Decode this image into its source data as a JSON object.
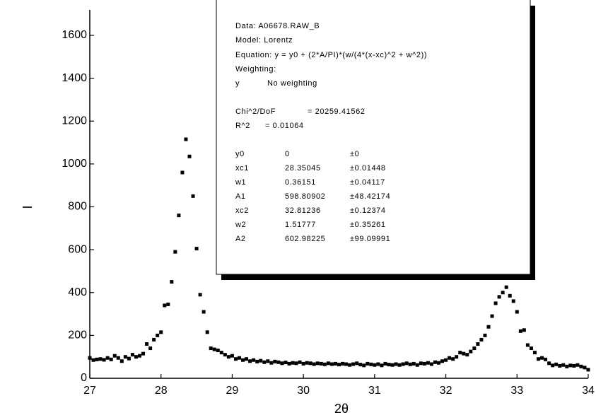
{
  "chart_data": {
    "type": "scatter",
    "xlabel": "2θ",
    "ylabel": "I",
    "xlim": [
      27,
      34
    ],
    "ylim": [
      0,
      1600
    ],
    "xticks": [
      27,
      28,
      29,
      30,
      31,
      32,
      33,
      34
    ],
    "yticks": [
      0,
      200,
      400,
      600,
      800,
      1000,
      1200,
      1400,
      1600
    ],
    "color": "#000000",
    "x": [
      27.0,
      27.05,
      27.1,
      27.15,
      27.2,
      27.25,
      27.3,
      27.35,
      27.4,
      27.45,
      27.5,
      27.55,
      27.6,
      27.65,
      27.7,
      27.75,
      27.8,
      27.85,
      27.9,
      27.95,
      28.0,
      28.05,
      28.1,
      28.15,
      28.2,
      28.25,
      28.3,
      28.35,
      28.4,
      28.45,
      28.5,
      28.55,
      28.6,
      28.65,
      28.7,
      28.75,
      28.8,
      28.85,
      28.9,
      28.95,
      29.0,
      29.05,
      29.1,
      29.15,
      29.2,
      29.25,
      29.3,
      29.35,
      29.4,
      29.45,
      29.5,
      29.55,
      29.6,
      29.65,
      29.7,
      29.75,
      29.8,
      29.85,
      29.9,
      29.95,
      30.0,
      30.05,
      30.1,
      30.15,
      30.2,
      30.25,
      30.3,
      30.35,
      30.4,
      30.45,
      30.5,
      30.55,
      30.6,
      30.65,
      30.7,
      30.75,
      30.8,
      30.85,
      30.9,
      30.95,
      31.0,
      31.05,
      31.1,
      31.15,
      31.2,
      31.25,
      31.3,
      31.35,
      31.4,
      31.45,
      31.5,
      31.55,
      31.6,
      31.65,
      31.7,
      31.75,
      31.8,
      31.85,
      31.9,
      31.95,
      32.0,
      32.05,
      32.1,
      32.15,
      32.2,
      32.25,
      32.3,
      32.35,
      32.4,
      32.45,
      32.5,
      32.55,
      32.6,
      32.65,
      32.7,
      32.75,
      32.8,
      32.85,
      32.9,
      32.95,
      33.0,
      33.05,
      33.1,
      33.15,
      33.2,
      33.25,
      33.3,
      33.35,
      33.4,
      33.45,
      33.5,
      33.55,
      33.6,
      33.65,
      33.7,
      33.75,
      33.8,
      33.85,
      33.9,
      33.95,
      34.0
    ],
    "values": [
      95,
      85,
      88,
      90,
      86,
      95,
      88,
      105,
      95,
      80,
      100,
      92,
      110,
      100,
      105,
      115,
      160,
      140,
      180,
      200,
      215,
      340,
      345,
      450,
      590,
      760,
      960,
      1115,
      1035,
      850,
      605,
      390,
      310,
      215,
      140,
      135,
      130,
      120,
      110,
      100,
      105,
      90,
      95,
      85,
      90,
      80,
      85,
      78,
      82,
      75,
      80,
      72,
      78,
      75,
      70,
      74,
      68,
      72,
      70,
      75,
      68,
      72,
      70,
      66,
      70,
      68,
      65,
      70,
      66,
      68,
      64,
      68,
      66,
      62,
      66,
      70,
      64,
      60,
      68,
      65,
      62,
      66,
      60,
      68,
      64,
      62,
      66,
      62,
      66,
      70,
      65,
      68,
      62,
      70,
      68,
      72,
      66,
      75,
      72,
      80,
      85,
      95,
      90,
      100,
      120,
      115,
      110,
      125,
      140,
      160,
      180,
      200,
      240,
      290,
      350,
      380,
      400,
      425,
      385,
      360,
      310,
      220,
      225,
      155,
      140,
      120,
      90,
      95,
      88,
      70,
      60,
      65,
      58,
      62,
      55,
      60,
      58,
      62,
      55,
      50,
      40
    ],
    "fit_report": [
      [
        "Data: A06678.RAW_B"
      ],
      [
        "Model: Lorentz"
      ],
      [
        "Equation: y = y0 + (2*A/PI)*(w/(4*(x-xc)^2 + w^2))"
      ],
      [
        "Weighting:"
      ],
      [
        "y",
        "No weighting"
      ],
      [
        "Chi^2/DoF",
        "= 20259.41562"
      ],
      [
        "R^2",
        "= 0.01064"
      ],
      [
        "y0",
        "0",
        "±0"
      ],
      [
        "xc1",
        "28.35045",
        "±0.01448"
      ],
      [
        "w1",
        "0.36151",
        "±0.04117"
      ],
      [
        "A1",
        "598.80902",
        "±48.42174"
      ],
      [
        "xc2",
        "32.81236",
        "±0.12374"
      ],
      [
        "w2",
        "1.51777",
        "±0.35261"
      ],
      [
        "A2",
        "602.98225",
        "±99.09991"
      ]
    ]
  }
}
